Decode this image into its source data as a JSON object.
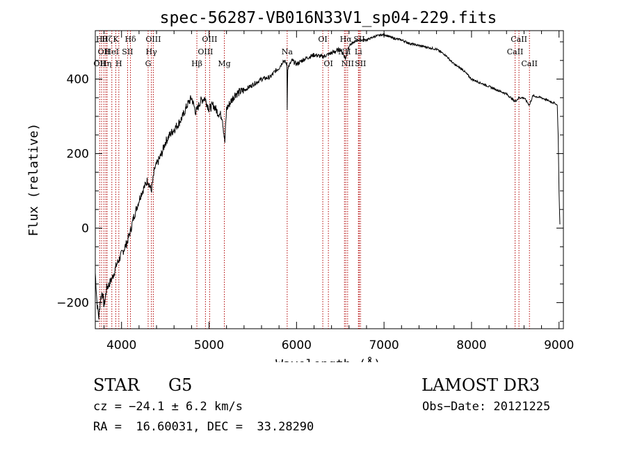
{
  "chart_data": {
    "type": "line",
    "title": "spec-56287-VB016N33V1_sp04-229.fits",
    "xlabel": "Wavelength (Å)",
    "ylabel": "Flux (relative)",
    "xlim": [
      3700,
      9050
    ],
    "ylim": [
      -270,
      530
    ],
    "xticks": [
      4000,
      5000,
      6000,
      7000,
      8000,
      9000
    ],
    "yticks": [
      -200,
      0,
      200,
      400
    ],
    "series": [
      {
        "name": "flux",
        "x": [
          3700,
          3720,
          3740,
          3760,
          3780,
          3800,
          3830,
          3860,
          3900,
          3940,
          3980,
          4020,
          4060,
          4100,
          4140,
          4180,
          4220,
          4260,
          4300,
          4340,
          4380,
          4420,
          4460,
          4500,
          4550,
          4600,
          4650,
          4700,
          4750,
          4800,
          4850,
          4900,
          4950,
          5000,
          5050,
          5100,
          5150,
          5180,
          5200,
          5250,
          5300,
          5400,
          5500,
          5600,
          5700,
          5750,
          5800,
          5850,
          5890,
          5893,
          5900,
          5950,
          6000,
          6100,
          6200,
          6300,
          6400,
          6500,
          6563,
          6600,
          6700,
          6800,
          6900,
          7000,
          7100,
          7200,
          7300,
          7400,
          7500,
          7600,
          7700,
          7800,
          7900,
          8000,
          8100,
          8200,
          8300,
          8400,
          8498,
          8542,
          8600,
          8662,
          8700,
          8800,
          8900,
          8950,
          8980,
          8990,
          9000,
          9010
        ],
        "y": [
          -120,
          -200,
          -240,
          -190,
          -170,
          -210,
          -160,
          -150,
          -130,
          -100,
          -80,
          -60,
          -40,
          -10,
          30,
          60,
          90,
          110,
          130,
          100,
          160,
          180,
          200,
          230,
          250,
          265,
          280,
          300,
          330,
          350,
          310,
          340,
          350,
          320,
          330,
          310,
          300,
          230,
          320,
          340,
          360,
          370,
          385,
          400,
          405,
          420,
          430,
          450,
          440,
          320,
          430,
          450,
          440,
          455,
          465,
          460,
          470,
          480,
          455,
          490,
          505,
          505,
          515,
          520,
          510,
          505,
          495,
          490,
          485,
          480,
          465,
          440,
          425,
          400,
          390,
          380,
          370,
          360,
          340,
          350,
          350,
          330,
          355,
          350,
          340,
          335,
          330,
          250,
          100,
          10
        ]
      }
    ],
    "lines": [
      {
        "x": 3750,
        "label": "OII",
        "row": 2
      },
      {
        "x": 3772,
        "label": "Hθ",
        "row": 0
      },
      {
        "x": 3798,
        "label": "OII",
        "row": 1
      },
      {
        "x": 3820,
        "label": "Hη",
        "row": 2
      },
      {
        "x": 3835,
        "label": "Hζ",
        "row": 0
      },
      {
        "x": 3889,
        "label": "HeI",
        "row": 1
      },
      {
        "x": 3934,
        "label": "K",
        "row": 0
      },
      {
        "x": 3969,
        "label": "H",
        "row": 2
      },
      {
        "x": 4069,
        "label": "SII",
        "row": 1
      },
      {
        "x": 4102,
        "label": "Hδ",
        "row": 0
      },
      {
        "x": 4304,
        "label": "G",
        "row": 2
      },
      {
        "x": 4341,
        "label": "Hγ",
        "row": 1
      },
      {
        "x": 4363,
        "label": "OIII",
        "row": 0
      },
      {
        "x": 4861,
        "label": "Hβ",
        "row": 2
      },
      {
        "x": 4959,
        "label": "OIII",
        "row": 1
      },
      {
        "x": 5007,
        "label": "OIII",
        "row": 0
      },
      {
        "x": 5175,
        "label": "Mg",
        "row": 2
      },
      {
        "x": 5893,
        "label": "Na",
        "row": 1
      },
      {
        "x": 6300,
        "label": "OI",
        "row": 0
      },
      {
        "x": 6364,
        "label": "OI",
        "row": 2
      },
      {
        "x": 6548,
        "label": "NII",
        "row": 1
      },
      {
        "x": 6563,
        "label": "Hα",
        "row": 0
      },
      {
        "x": 6584,
        "label": "NII",
        "row": 2
      },
      {
        "x": 6707,
        "label": "Li",
        "row": 1
      },
      {
        "x": 6717,
        "label": "SII",
        "row": 0
      },
      {
        "x": 6731,
        "label": "SII",
        "row": 2
      },
      {
        "x": 8498,
        "label": "CaII",
        "row": 1
      },
      {
        "x": 8542,
        "label": "CaII",
        "row": 0
      },
      {
        "x": 8662,
        "label": "CaII",
        "row": 2
      }
    ]
  },
  "info": {
    "object_type": "STAR",
    "subclass": "G5",
    "survey": "LAMOST DR3",
    "cz": "cz = −24.1 ± 6.2 km/s",
    "obs_date": "Obs−Date: 20121225",
    "coords": "RA =  16.60031, DEC =  33.28290"
  },
  "colors": {
    "line_marker": "#b00000",
    "spectrum": "#000000"
  }
}
